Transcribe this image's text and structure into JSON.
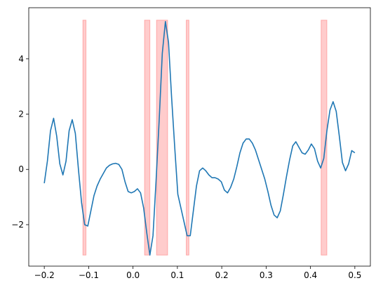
{
  "chart_data": {
    "type": "line",
    "title": "",
    "xlabel": "",
    "ylabel": "",
    "xlim": [
      -0.235,
      0.535
    ],
    "ylim": [
      -3.5,
      5.85
    ],
    "xticks": [
      -0.2,
      -0.1,
      0.0,
      0.1,
      0.2,
      0.3,
      0.4,
      0.5
    ],
    "xtick_labels": [
      "−0.2",
      "−0.1",
      "0.0",
      "0.1",
      "0.2",
      "0.3",
      "0.4",
      "0.5"
    ],
    "yticks": [
      -2,
      0,
      2,
      4
    ],
    "ytick_labels": [
      "−2",
      "0",
      "2",
      "4"
    ],
    "grid": false,
    "line_color": "#1f77b4",
    "highlight_color": "#ff0000",
    "highlight_ylim": [
      -3.1,
      5.4
    ],
    "highlight_regions": [
      [
        -0.113,
        -0.106
      ],
      [
        0.026,
        0.038
      ],
      [
        0.053,
        0.078
      ],
      [
        0.12,
        0.126
      ],
      [
        0.424,
        0.437
      ]
    ],
    "series": [
      {
        "x": [
          -0.2,
          -0.193,
          -0.186,
          -0.179,
          -0.172,
          -0.165,
          -0.158,
          -0.151,
          -0.144,
          -0.137,
          -0.13,
          -0.123,
          -0.116,
          -0.109,
          -0.102,
          -0.095,
          -0.088,
          -0.081,
          -0.074,
          -0.067,
          -0.06,
          -0.053,
          -0.046,
          -0.039,
          -0.032,
          -0.025,
          -0.018,
          -0.011,
          -0.004,
          0.003,
          0.01,
          0.017,
          0.024,
          0.031,
          0.038,
          0.045,
          0.052,
          0.059,
          0.066,
          0.073,
          0.08,
          0.087,
          0.094,
          0.101,
          0.108,
          0.115,
          0.122,
          0.129,
          0.136,
          0.143,
          0.15,
          0.157,
          0.164,
          0.171,
          0.178,
          0.185,
          0.192,
          0.199,
          0.206,
          0.213,
          0.22,
          0.227,
          0.234,
          0.241,
          0.248,
          0.255,
          0.262,
          0.269,
          0.276,
          0.283,
          0.29,
          0.297,
          0.304,
          0.311,
          0.318,
          0.325,
          0.332,
          0.339,
          0.346,
          0.353,
          0.36,
          0.367,
          0.374,
          0.381,
          0.388,
          0.395,
          0.402,
          0.409,
          0.416,
          0.423,
          0.43,
          0.437,
          0.444,
          0.451,
          0.458,
          0.465,
          0.472,
          0.479,
          0.486,
          0.493,
          0.5
        ],
        "y": [
          -0.5,
          0.3,
          1.4,
          1.85,
          1.2,
          0.2,
          -0.2,
          0.3,
          1.4,
          1.8,
          1.3,
          0.0,
          -1.2,
          -2.0,
          -2.05,
          -1.5,
          -0.95,
          -0.6,
          -0.35,
          -0.15,
          0.05,
          0.15,
          0.2,
          0.22,
          0.18,
          0.0,
          -0.45,
          -0.8,
          -0.85,
          -0.8,
          -0.7,
          -0.85,
          -1.4,
          -2.3,
          -3.1,
          -2.4,
          -0.4,
          1.8,
          4.2,
          5.35,
          4.6,
          2.6,
          0.8,
          -0.9,
          -1.4,
          -1.9,
          -2.4,
          -2.4,
          -1.5,
          -0.6,
          -0.05,
          0.05,
          -0.05,
          -0.2,
          -0.3,
          -0.3,
          -0.35,
          -0.45,
          -0.75,
          -0.85,
          -0.65,
          -0.35,
          0.1,
          0.6,
          0.95,
          1.1,
          1.1,
          0.95,
          0.7,
          0.35,
          0.0,
          -0.35,
          -0.8,
          -1.3,
          -1.65,
          -1.75,
          -1.5,
          -0.9,
          -0.25,
          0.35,
          0.85,
          1.0,
          0.8,
          0.6,
          0.55,
          0.7,
          0.92,
          0.75,
          0.3,
          0.05,
          0.4,
          1.4,
          2.15,
          2.45,
          2.1,
          1.2,
          0.25,
          -0.05,
          0.2,
          0.68,
          0.6
        ]
      }
    ]
  }
}
